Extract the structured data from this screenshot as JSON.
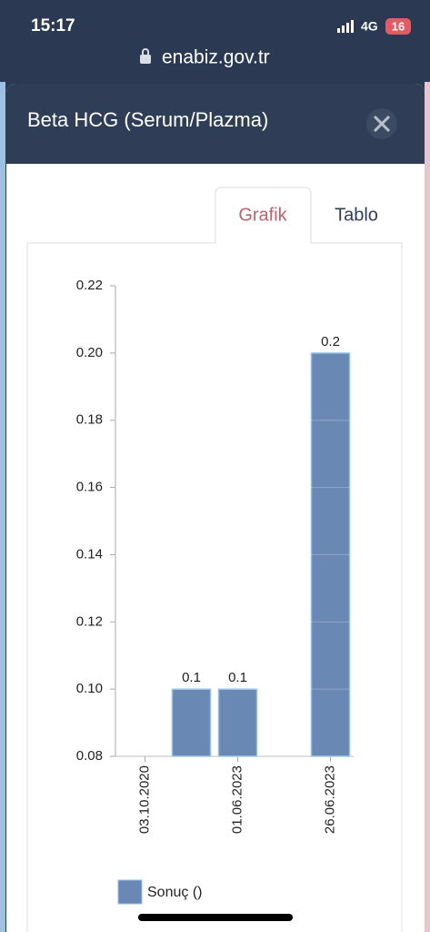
{
  "status_bar": {
    "time": "15:17",
    "network": "4G",
    "battery": "16"
  },
  "browser": {
    "url": "enabiz.gov.tr"
  },
  "modal": {
    "title": "Beta HCG (Serum/Plazma)",
    "tabs": [
      "Grafik",
      "Tablo"
    ]
  },
  "chart_data": {
    "type": "bar",
    "categories": [
      "03.10.2020",
      null,
      "01.06.2023",
      null,
      "26.06.2023"
    ],
    "series": [
      {
        "name": "Sonuç ()",
        "color": "#6a88b4",
        "values": [
          null,
          0.1,
          0.1,
          null,
          0.2
        ]
      }
    ],
    "ylim": [
      0.08,
      0.22
    ],
    "yticks": [
      0.08,
      {
        "value": 0.1,
        "label": "0.10"
      },
      0.12,
      0.14,
      0.16,
      0.18,
      {
        "value": 0.2,
        "label": "0.20"
      },
      0.22
    ],
    "grid": true,
    "legend": "bottom-left"
  }
}
